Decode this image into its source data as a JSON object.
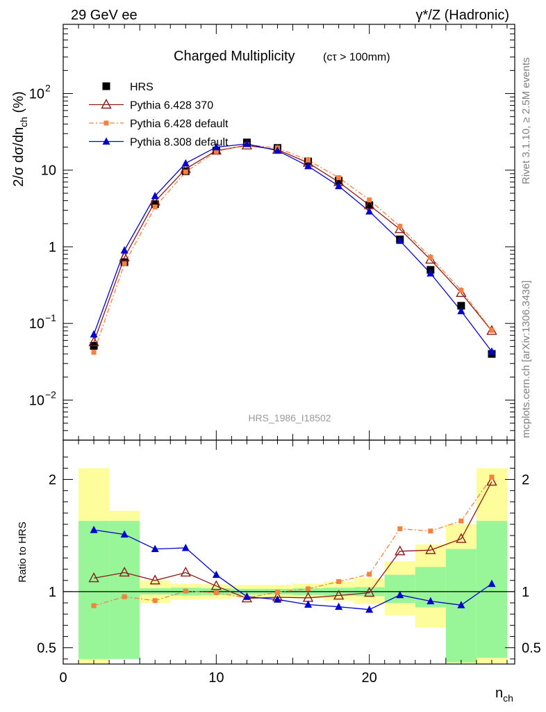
{
  "header": {
    "left": "29 GeV ee",
    "right": "γ*/Z (Hadronic)"
  },
  "side": {
    "rivet": "Rivet 3.1.10, ≥ 2.5M events",
    "mcplots": "mcplots.cern.ch [arXiv:1306.3436]"
  },
  "chart_data": [
    {
      "type": "line",
      "title": "Charged Multiplicity",
      "title_cut": "(cτ > 100mm)",
      "ylabel": "2/σ dσ/dn_ch (%)",
      "ylabel_parts": {
        "main": "2/σ dσ/dn",
        "sub": "ch",
        "unit": " (%)"
      },
      "yscale": "log",
      "xlim": [
        0,
        29.5
      ],
      "ylim": [
        0.003,
        800
      ],
      "y_ticks": [
        {
          "v": 0.01,
          "label": "10",
          "exp": "−2"
        },
        {
          "v": 0.1,
          "label": "10",
          "exp": "−1"
        },
        {
          "v": 1,
          "label": "1",
          "exp": ""
        },
        {
          "v": 10,
          "label": "10",
          "exp": ""
        },
        {
          "v": 100,
          "label": "10",
          "exp": "2"
        }
      ],
      "watermark": "HRS_1986_I18502",
      "legend_position": "top-left",
      "x": [
        2,
        4,
        6,
        8,
        10,
        12,
        14,
        16,
        18,
        20,
        22,
        24,
        26,
        28
      ],
      "series": [
        {
          "name": "HRS",
          "color": "#000000",
          "marker": "square",
          "line": "none",
          "values": [
            0.051,
            0.63,
            3.6,
            9.7,
            18.0,
            23.0,
            19.5,
            13.0,
            7.3,
            3.5,
            1.25,
            0.5,
            0.17,
            0.04
          ]
        },
        {
          "name": "Pythia 6.428 370",
          "color": "#8b1a1a",
          "marker": "triangle-open",
          "line": "solid",
          "values": [
            0.057,
            0.73,
            3.9,
            10.4,
            18.0,
            21.0,
            18.5,
            12.5,
            7.0,
            3.5,
            1.7,
            0.68,
            0.25,
            0.08
          ]
        },
        {
          "name": "Pythia 6.428 default",
          "color": "#f5813f",
          "marker": "square-small",
          "line": "dashdot",
          "values": [
            0.042,
            0.6,
            3.3,
            9.5,
            17.5,
            21.5,
            19.5,
            13.5,
            8.0,
            4.1,
            1.85,
            0.73,
            0.27,
            0.081
          ]
        },
        {
          "name": "Pythia 8.308 default",
          "color": "#0000d0",
          "marker": "triangle",
          "line": "solid",
          "values": [
            0.072,
            0.9,
            4.6,
            12.3,
            20.0,
            22.0,
            18.0,
            11.3,
            6.2,
            2.9,
            1.2,
            0.45,
            0.145,
            0.043
          ]
        }
      ]
    },
    {
      "type": "line",
      "ylabel": "Ratio to HRS",
      "xlabel": "n_ch",
      "xlabel_parts": {
        "main": "n",
        "sub": "ch"
      },
      "xlim": [
        0,
        29.5
      ],
      "ylim": [
        0.355,
        2.35
      ],
      "x_ticks": [
        0,
        10,
        20
      ],
      "y_ticks": [
        {
          "v": 0.5,
          "label": "0.5"
        },
        {
          "v": 1,
          "label": "1"
        },
        {
          "v": 2,
          "label": "2"
        }
      ],
      "bands": {
        "edges": [
          1,
          3,
          5,
          7,
          9,
          11,
          13,
          15,
          17,
          19,
          21,
          23,
          25,
          27,
          29
        ],
        "green_lo": [
          0.4,
          0.4,
          0.975,
          0.965,
          0.97,
          0.975,
          0.975,
          0.97,
          0.965,
          0.96,
          0.9,
          0.86,
          0.37,
          0.41
        ],
        "green_hi": [
          1.63,
          1.63,
          1.03,
          1.035,
          1.03,
          1.025,
          1.025,
          1.03,
          1.035,
          1.04,
          1.15,
          1.22,
          1.38,
          1.63
        ],
        "yellow_lo": [
          0.36,
          0.72,
          0.9,
          0.93,
          0.935,
          0.95,
          0.95,
          0.94,
          0.92,
          0.89,
          0.79,
          0.68,
          0.36,
          0.36
        ],
        "yellow_hi": [
          2.1,
          1.72,
          1.1,
          1.07,
          1.065,
          1.06,
          1.06,
          1.07,
          1.09,
          1.12,
          1.27,
          1.42,
          1.6,
          2.1
        ],
        "green_color": "#98f598",
        "yellow_color": "#fdfd9b"
      },
      "series": [
        {
          "name": "Pythia 6.428 370",
          "color": "#8b1a1a",
          "marker": "triangle-open",
          "line": "solid",
          "values": [
            1.12,
            1.17,
            1.1,
            1.17,
            1.05,
            0.94,
            0.95,
            0.945,
            0.965,
            0.99,
            1.36,
            1.37,
            1.47,
            1.98
          ]
        },
        {
          "name": "Pythia 6.428 default",
          "color": "#f5813f",
          "marker": "square-small",
          "line": "dashdot",
          "values": [
            0.875,
            0.955,
            0.92,
            1.005,
            0.99,
            0.945,
            0.995,
            1.025,
            1.09,
            1.155,
            1.56,
            1.54,
            1.63,
            2.02
          ]
        },
        {
          "name": "Pythia 8.308 default",
          "color": "#0000d0",
          "marker": "triangle",
          "line": "solid",
          "values": [
            1.55,
            1.51,
            1.38,
            1.39,
            1.15,
            0.955,
            0.93,
            0.885,
            0.865,
            0.84,
            0.97,
            0.915,
            0.88,
            1.07
          ]
        }
      ]
    }
  ]
}
